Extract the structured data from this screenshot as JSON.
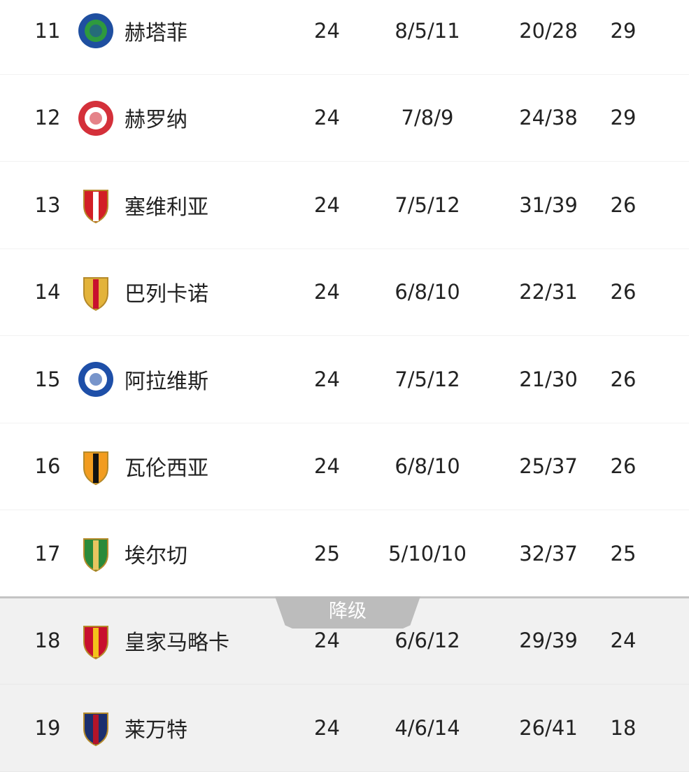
{
  "rows": [
    {
      "rank": "11",
      "team": "赫塔菲",
      "played": "24",
      "wdl": "8/5/11",
      "goals": "20/28",
      "points": "29",
      "logo": "getafe-crest-icon",
      "c1": "#1f4fa0",
      "c2": "#2e9a3e"
    },
    {
      "rank": "12",
      "team": "赫罗纳",
      "played": "24",
      "wdl": "7/8/9",
      "goals": "24/38",
      "points": "29",
      "logo": "girona-crest-icon",
      "c1": "#d4303a",
      "c2": "#ffffff"
    },
    {
      "rank": "13",
      "team": "塞维利亚",
      "played": "24",
      "wdl": "7/5/12",
      "goals": "31/39",
      "points": "26",
      "logo": "sevilla-crest-icon",
      "c1": "#d21f26",
      "c2": "#ffffff"
    },
    {
      "rank": "14",
      "team": "巴列卡诺",
      "played": "24",
      "wdl": "6/8/10",
      "goals": "22/31",
      "points": "26",
      "logo": "rayo-crest-icon",
      "c1": "#e3b33a",
      "c2": "#c8102e"
    },
    {
      "rank": "15",
      "team": "阿拉维斯",
      "played": "24",
      "wdl": "7/5/12",
      "goals": "21/30",
      "points": "26",
      "logo": "alaves-crest-icon",
      "c1": "#1e4fa8",
      "c2": "#ffffff"
    },
    {
      "rank": "16",
      "team": "瓦伦西亚",
      "played": "24",
      "wdl": "6/8/10",
      "goals": "25/37",
      "points": "26",
      "logo": "valencia-crest-icon",
      "c1": "#f29c1f",
      "c2": "#111111"
    },
    {
      "rank": "17",
      "team": "埃尔切",
      "played": "25",
      "wdl": "5/10/10",
      "goals": "32/37",
      "points": "25",
      "logo": "elche-crest-icon",
      "c1": "#2a8a3a",
      "c2": "#e8c560"
    },
    {
      "rank": "18",
      "team": "皇家马略卡",
      "played": "24",
      "wdl": "6/6/12",
      "goals": "29/39",
      "points": "24",
      "logo": "mallorca-crest-icon",
      "c1": "#c8102e",
      "c2": "#f3c21b"
    },
    {
      "rank": "19",
      "team": "莱万特",
      "played": "24",
      "wdl": "4/6/14",
      "goals": "26/41",
      "points": "18",
      "logo": "levante-crest-icon",
      "c1": "#1b2f6e",
      "c2": "#b3142a"
    }
  ],
  "relegation_label": "降级",
  "colors": {
    "relegation_bg": "#f1f1f1",
    "relegation_tab": "#bcbcbc"
  }
}
